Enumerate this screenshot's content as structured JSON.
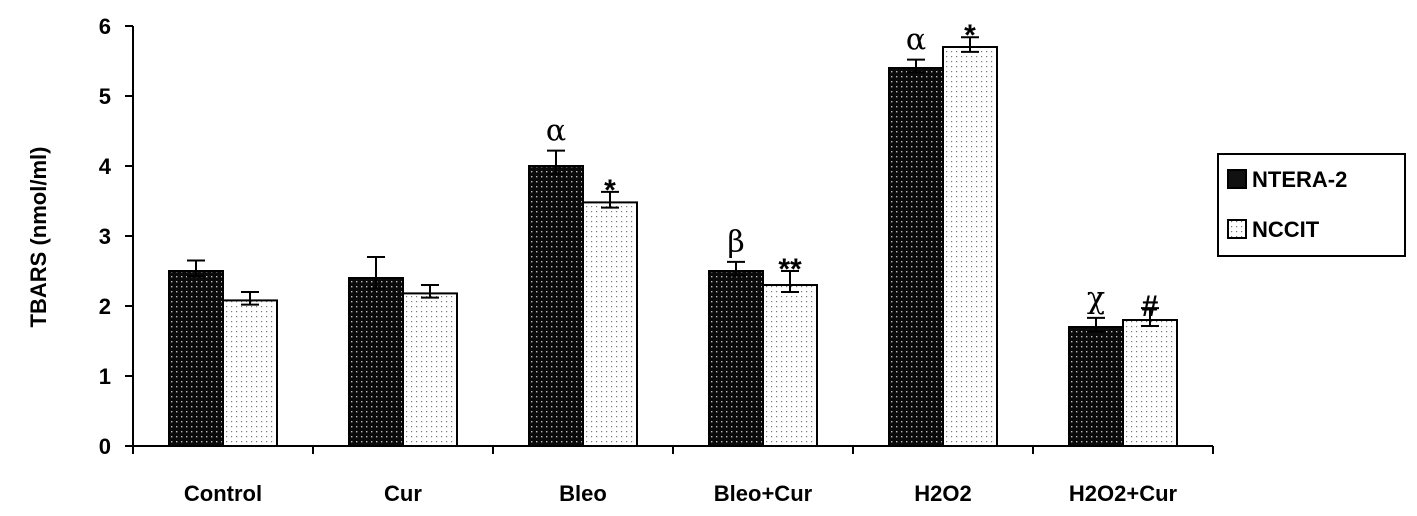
{
  "chart_data": {
    "type": "bar",
    "title": "",
    "xlabel": "",
    "ylabel": "TBARS (nmol/ml)",
    "ylim": [
      0,
      6
    ],
    "yticks": [
      0,
      1,
      2,
      3,
      4,
      5,
      6
    ],
    "grid": false,
    "legend_position": "right",
    "categories": [
      "Control",
      "Cur",
      "Bleo",
      "Bleo+Cur",
      "H2O2",
      "H2O2+Cur"
    ],
    "series": [
      {
        "name": "NTERA-2",
        "color": "#111111",
        "pattern": "dark-dotted",
        "values": [
          2.5,
          2.4,
          4.0,
          2.5,
          5.4,
          1.7
        ],
        "errors": [
          0.15,
          0.3,
          0.22,
          0.13,
          0.12,
          0.13
        ],
        "annotations": [
          "",
          "",
          "α",
          "β",
          "α",
          "χ"
        ]
      },
      {
        "name": "NCCIT",
        "color": "#ffffff",
        "pattern": "light-dotted",
        "values": [
          2.08,
          2.18,
          3.48,
          2.3,
          5.7,
          1.8
        ],
        "errors": [
          0.12,
          0.12,
          0.15,
          0.2,
          0.14,
          0.17
        ],
        "annotations": [
          "",
          "",
          "*",
          "**",
          "*",
          "#"
        ]
      }
    ]
  }
}
